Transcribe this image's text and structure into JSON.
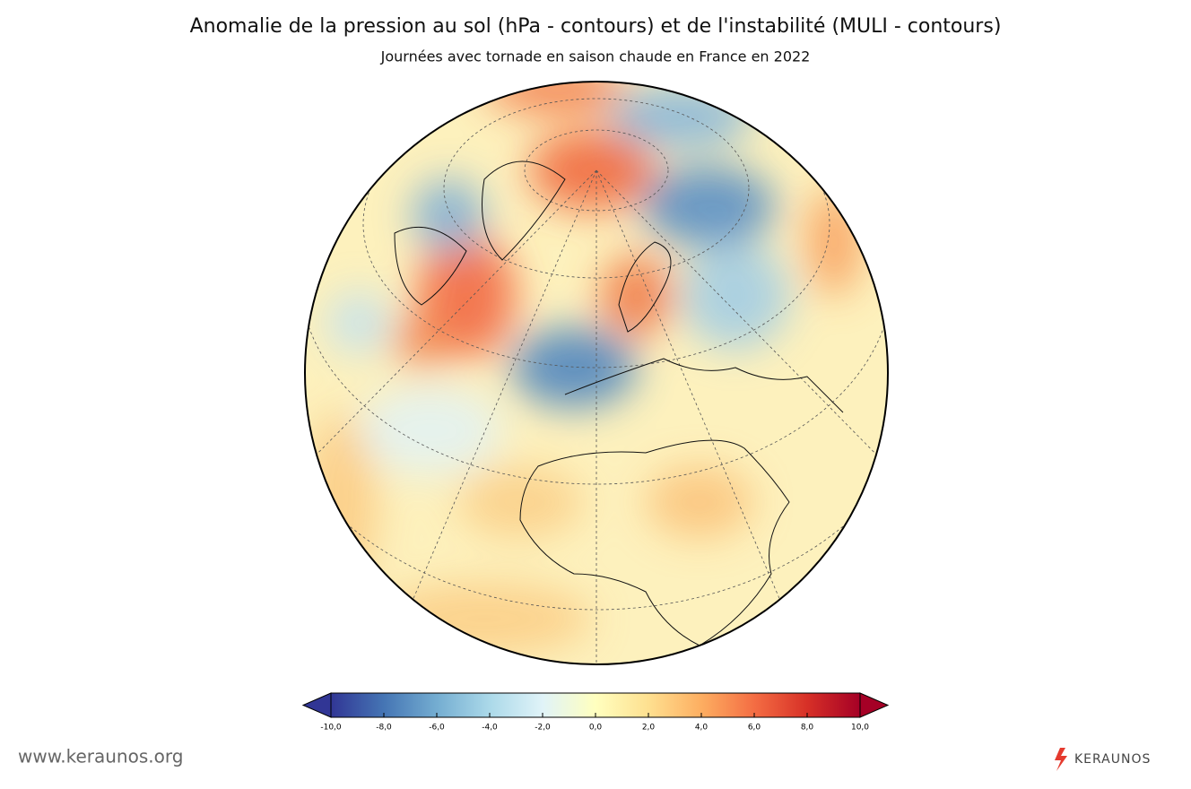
{
  "header": {
    "title": "Anomalie de la pression au sol (hPa - contours) et de l'instabilité (MULI - contours)",
    "subtitle": "Journées avec tornade en saison chaude en France en 2022"
  },
  "colorbar": {
    "lim": [
      -10,
      10
    ],
    "ticks": [
      {
        "value": -10,
        "label": "-10,0"
      },
      {
        "value": -8,
        "label": "-8,0"
      },
      {
        "value": -6,
        "label": "-6,0"
      },
      {
        "value": -4,
        "label": "-4,0"
      },
      {
        "value": -2,
        "label": "-2,0"
      },
      {
        "value": 0,
        "label": "0,0"
      },
      {
        "value": 2,
        "label": "2,0"
      },
      {
        "value": 4,
        "label": "4,0"
      },
      {
        "value": 6,
        "label": "6,0"
      },
      {
        "value": 8,
        "label": "8,0"
      },
      {
        "value": 10,
        "label": "10,0"
      }
    ],
    "colors": [
      "#313695",
      "#4575b4",
      "#74add1",
      "#abd9e9",
      "#e0f3f8",
      "#ffffbf",
      "#fee090",
      "#fdae61",
      "#f46d43",
      "#d73027",
      "#a50026"
    ]
  },
  "footer": {
    "website": "www.keraunos.org",
    "logo": "KERAUNOS"
  }
}
